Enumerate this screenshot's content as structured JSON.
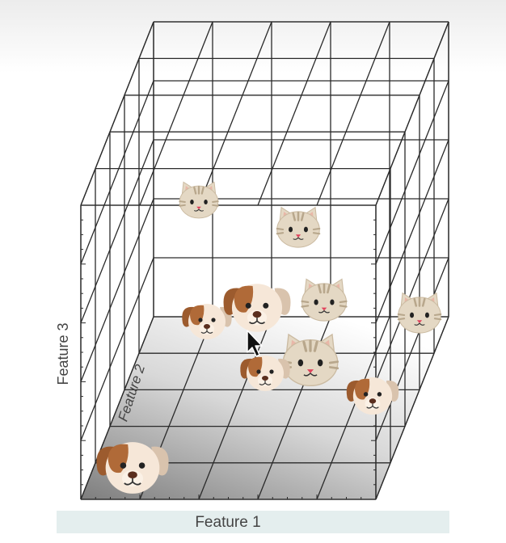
{
  "axes": {
    "x_label": "Feature 1",
    "y_label": "Feature 2",
    "z_label": "Feature 3"
  },
  "colors": {
    "grid": "#2a2a2a",
    "floor_dark": "#8a8a8a",
    "floor_light": "#ffffff",
    "caption_bg": "#e4eeee",
    "cat_face": "#e4d8c4",
    "cat_stripe": "#b8a78c",
    "dog_face": "#f6e7d8",
    "dog_ear": "#9c5b2e",
    "nose_cat": "#e0435c",
    "nose_dog": "#5a2e1e"
  },
  "points": [
    {
      "kind": "cat",
      "icon": "cat-face-icon"
    },
    {
      "kind": "cat",
      "icon": "cat-face-icon"
    },
    {
      "kind": "cat",
      "icon": "cat-face-icon"
    },
    {
      "kind": "cat",
      "icon": "cat-face-icon"
    },
    {
      "kind": "cat",
      "icon": "cat-face-icon"
    },
    {
      "kind": "dog",
      "icon": "dog-face-icon"
    },
    {
      "kind": "dog",
      "icon": "dog-face-icon"
    },
    {
      "kind": "dog",
      "icon": "dog-face-icon"
    },
    {
      "kind": "dog",
      "icon": "dog-face-icon"
    },
    {
      "kind": "dog",
      "icon": "dog-face-icon"
    }
  ],
  "cursor": {
    "icon": "mouse-pointer-icon"
  }
}
